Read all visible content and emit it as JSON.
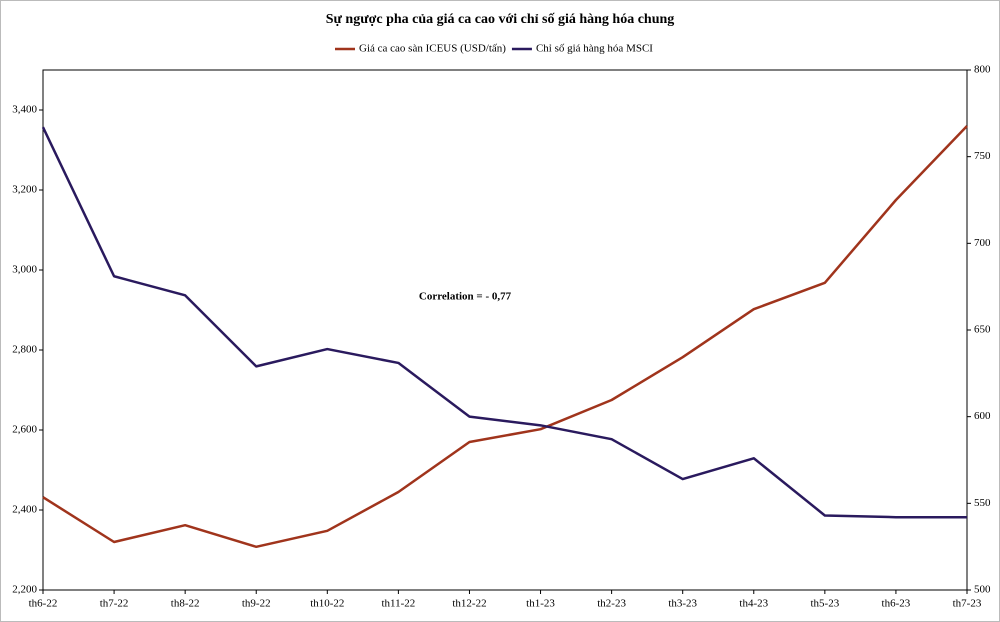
{
  "chart_data": {
    "type": "line",
    "title": "Sự ngược pha của giá ca cao với chỉ số giá hàng hóa chung",
    "annotation": "Correlation =  - 0,77",
    "categories": [
      "th6-22",
      "th7-22",
      "th8-22",
      "th9-22",
      "th10-22",
      "th11-22",
      "th12-22",
      "th1-23",
      "th2-23",
      "th3-23",
      "th4-23",
      "th5-23",
      "th6-23",
      "th7-23"
    ],
    "series": [
      {
        "name": "Giá ca cao sàn ICEUS (USD/tấn)",
        "color": "#a0341c",
        "values": [
          2432,
          2320,
          2362,
          2308,
          2348,
          2445,
          2570,
          2602,
          2675,
          2782,
          2902,
          2968,
          3175,
          3360
        ]
      },
      {
        "name": "Chỉ số giá hàng hóa MSCI",
        "color": "#2a1a5e",
        "axis": "y2",
        "values": [
          767,
          681,
          670,
          629,
          639,
          631,
          600,
          595,
          587,
          564,
          576,
          543,
          542,
          542
        ]
      }
    ],
    "ylim": [
      2200,
      3500
    ],
    "yticks": [
      {
        "value": 2200,
        "label": "2,200"
      },
      {
        "value": 2400,
        "label": "2,400"
      },
      {
        "value": 2600,
        "label": "2,600"
      },
      {
        "value": 2800,
        "label": "2,800"
      },
      {
        "value": 3000,
        "label": "3,000"
      },
      {
        "value": 3200,
        "label": "3,200"
      },
      {
        "value": 3400,
        "label": "3,400"
      }
    ],
    "y2lim": [
      500,
      800
    ],
    "y2ticks": [
      500,
      550,
      600,
      650,
      700,
      750,
      800
    ],
    "legend": "top",
    "grid": false
  }
}
